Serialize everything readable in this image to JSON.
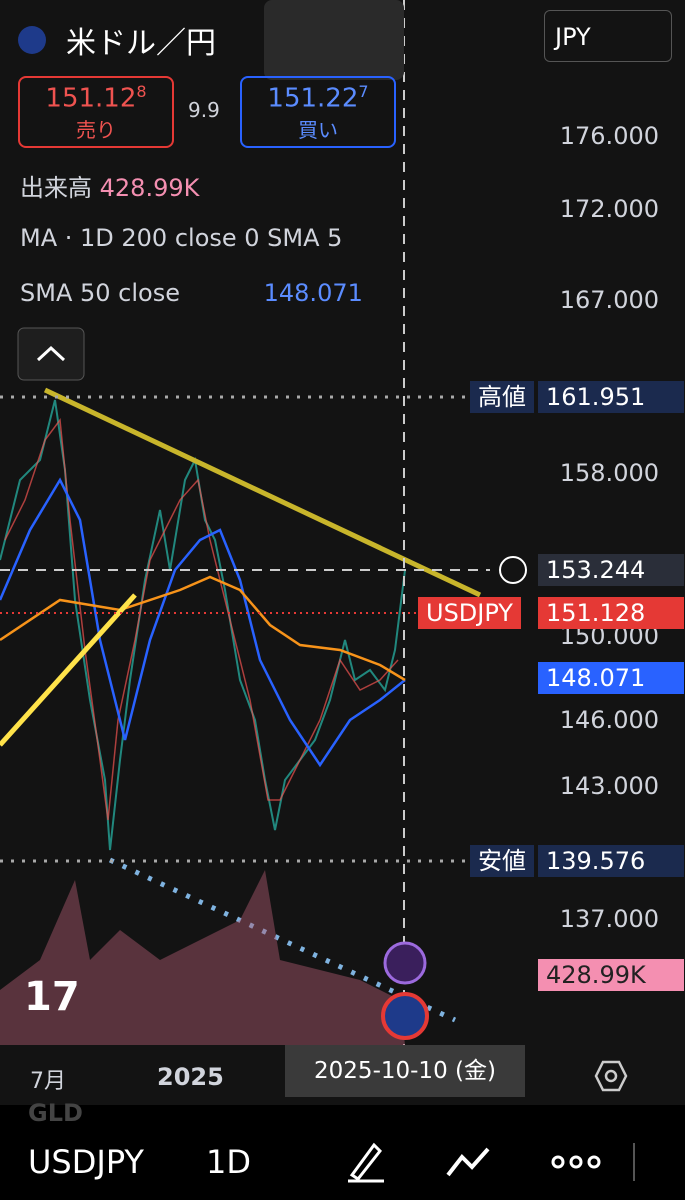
{
  "header": {
    "symbol": "米ドル／円",
    "currency": "JPY"
  },
  "quote": {
    "sell": {
      "price": "151.12",
      "pip": "8",
      "label": "売り"
    },
    "spread": "9.9",
    "buy": {
      "price": "151.22",
      "pip": "7",
      "label": "買い"
    }
  },
  "indicators": {
    "volume": {
      "label": "出来高",
      "value": "428.99K"
    },
    "ma": "MA · 1D 200 close 0 SMA 5",
    "sma": {
      "label": "SMA 50 close",
      "value": "148.071"
    }
  },
  "price_axis": {
    "ticks": [
      "176.000",
      "172.000",
      "167.000",
      "158.000",
      "150.000",
      "146.000",
      "143.000",
      "137.000"
    ]
  },
  "markers": {
    "high": {
      "label": "高値",
      "value": "161.951"
    },
    "crosshair": "153.244",
    "last": {
      "symbol": "USDJPY",
      "value": "151.128"
    },
    "sma": "148.071",
    "low": {
      "label": "安値",
      "value": "139.576"
    },
    "volume": "428.99K"
  },
  "time_axis": {
    "labels": [
      "7月",
      "2025"
    ],
    "cursor": "2025-10-10 (金)"
  },
  "toolbar": {
    "symbol": "USDJPY",
    "interval": "1D",
    "behind": "GLD"
  }
}
